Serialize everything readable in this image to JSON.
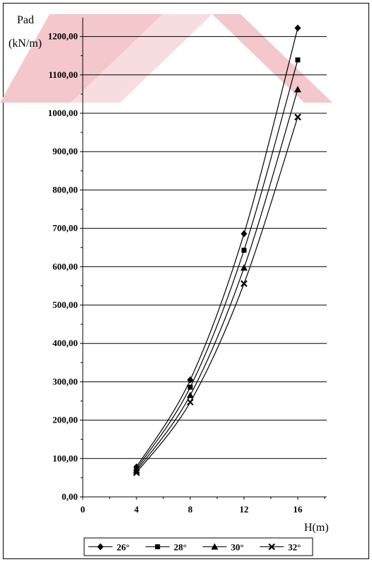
{
  "chart_data": {
    "type": "line",
    "ylabel_line1": "Pad",
    "ylabel_line2": "(kN/m)",
    "xlabel": "H(m)",
    "x_ticks": [
      "0",
      "4",
      "8",
      "12",
      "16"
    ],
    "y_ticks": [
      "0,00",
      "100,00",
      "200,00",
      "300,00",
      "400,00",
      "500,00",
      "600,00",
      "700,00",
      "800,00",
      "900,00",
      "1000,00",
      "1100,00",
      "1200,00"
    ],
    "xlim": [
      0,
      18
    ],
    "ylim": [
      0,
      1300
    ],
    "grid": "horizontal",
    "legend_position": "bottom",
    "x": [
      4,
      8,
      12,
      16
    ],
    "series": [
      {
        "name": "26°",
        "marker": "diamond",
        "values": [
          78,
          305,
          686,
          1222
        ]
      },
      {
        "name": "28°",
        "marker": "square",
        "values": [
          73,
          286,
          643,
          1139
        ]
      },
      {
        "name": "30°",
        "marker": "triangle",
        "values": [
          68,
          265,
          597,
          1062
        ]
      },
      {
        "name": "32°",
        "marker": "cross",
        "values": [
          63,
          247,
          556,
          990
        ]
      }
    ]
  },
  "colors": {
    "line": "#000000",
    "grid": "#000000",
    "watermark": "#f3c7cb"
  }
}
